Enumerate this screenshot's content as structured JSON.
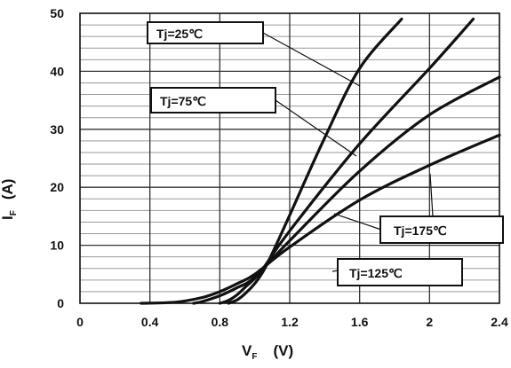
{
  "chart_data": {
    "type": "line",
    "x_axis": {
      "symbol": "V",
      "subscript": "F",
      "unit": "(V)",
      "min": 0,
      "max": 2.4,
      "ticks": [
        0,
        0.4,
        0.8,
        1.2,
        1.6,
        2,
        2.4
      ],
      "tick_labels": [
        "0",
        "0.4",
        "0.8",
        "1.2",
        "1.6",
        "2",
        "2.4"
      ]
    },
    "y_axis": {
      "symbol": "I",
      "subscript": "F",
      "unit": "(A)",
      "min": 0,
      "max": 50,
      "ticks": [
        0,
        10,
        20,
        30,
        40,
        50
      ],
      "tick_labels": [
        "0",
        "10",
        "20",
        "30",
        "40",
        "50"
      ]
    },
    "grid": {
      "major_x": true,
      "major_y": true,
      "minor_y_step": 2
    },
    "series": [
      {
        "name": "Tj=25℃",
        "points": [
          [
            0.85,
            0
          ],
          [
            0.9,
            0.6
          ],
          [
            0.95,
            1.8
          ],
          [
            1.0,
            3.4
          ],
          [
            1.05,
            5.6
          ],
          [
            1.1,
            8.6
          ],
          [
            1.2,
            15.2
          ],
          [
            1.4,
            28.5
          ],
          [
            1.6,
            40.5
          ],
          [
            1.84,
            49
          ]
        ]
      },
      {
        "name": "Tj=75℃",
        "points": [
          [
            0.8,
            0
          ],
          [
            0.85,
            0.5
          ],
          [
            0.9,
            1.5
          ],
          [
            0.95,
            2.9
          ],
          [
            1.0,
            4.3
          ],
          [
            1.05,
            6.1
          ],
          [
            1.2,
            12.5
          ],
          [
            1.6,
            27.5
          ],
          [
            2.0,
            40.5
          ],
          [
            2.25,
            49
          ]
        ]
      },
      {
        "name": "Tj=125℃",
        "points": [
          [
            0.65,
            0
          ],
          [
            0.7,
            0.3
          ],
          [
            0.8,
            1.3
          ],
          [
            0.9,
            2.7
          ],
          [
            1.0,
            4.5
          ],
          [
            1.2,
            10.8
          ],
          [
            1.6,
            22.8
          ],
          [
            2.0,
            32.5
          ],
          [
            2.4,
            39
          ]
        ]
      },
      {
        "name": "Tj=175℃",
        "points": [
          [
            0.35,
            0
          ],
          [
            0.55,
            0.2
          ],
          [
            0.7,
            1.0
          ],
          [
            0.8,
            2.0
          ],
          [
            0.9,
            3.4
          ],
          [
            1.0,
            5.0
          ],
          [
            1.2,
            9.7
          ],
          [
            1.6,
            17.8
          ],
          [
            2.0,
            23.8
          ],
          [
            2.4,
            29
          ]
        ]
      }
    ],
    "labels": [
      "Tj=25℃",
      "Tj=75℃",
      "Tj=175℃",
      "Tj=125℃"
    ]
  }
}
